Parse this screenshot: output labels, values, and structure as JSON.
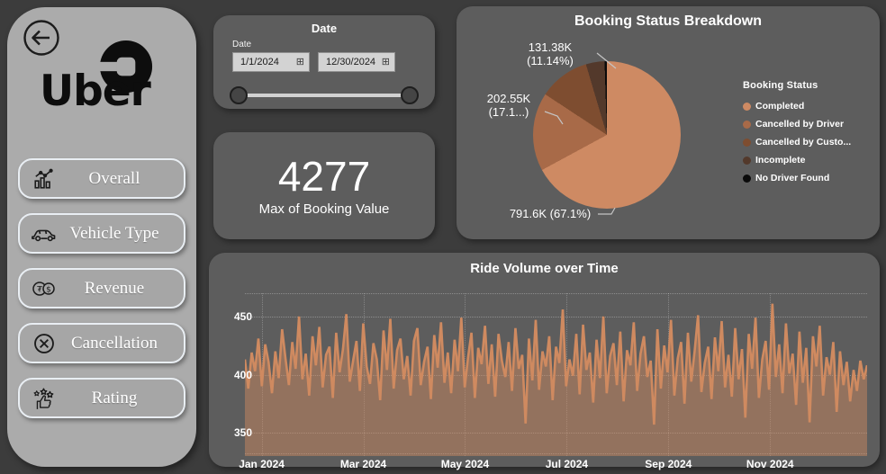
{
  "app": {
    "background_color": "#3c3c3c",
    "card_color": "#5d5d5d",
    "sidebar_color": "#ababab",
    "accent_color": "#CE8A63"
  },
  "sidebar": {
    "back_icon": "back-arrow-icon",
    "logo_text": "Uber",
    "logo_icon": "uber-badge-icon",
    "items": [
      {
        "label": "Overall",
        "icon": "bar-chart-icon"
      },
      {
        "label": "Vehicle Type",
        "icon": "car-icon"
      },
      {
        "label": "Revenue",
        "icon": "coins-icon"
      },
      {
        "label": "Cancellation",
        "icon": "cancel-circle-icon"
      },
      {
        "label": "Rating",
        "icon": "thumbs-up-stars-icon"
      }
    ]
  },
  "date_card": {
    "title": "Date",
    "field_label": "Date",
    "start_date": "1/1/2024",
    "end_date": "12/30/2024",
    "calendar_icon": "calendar-icon"
  },
  "kpi_card": {
    "value": "4277",
    "label": "Max of Booking Value"
  },
  "chart_data": [
    {
      "type": "pie",
      "title": "Booking Status Breakdown",
      "legend_title": "Booking Status",
      "legend_position": "right",
      "slices": [
        {
          "label": "Completed",
          "pct": 67.1,
          "value_label": "791.6K",
          "color": "#CE8A63",
          "callout_line1": "791.6K (67.1%)",
          "callout_line2": ""
        },
        {
          "label": "Cancelled by Driver",
          "pct": 17.17,
          "value_label": "202.55K",
          "color": "#A86A48",
          "callout_line1": "202.55K",
          "callout_line2": "(17.1...)"
        },
        {
          "label": "Cancelled by Custo...",
          "pct": 11.14,
          "value_label": "131.38K",
          "color": "#7E4D30",
          "callout_line1": "131.38K",
          "callout_line2": "(11.14%)"
        },
        {
          "label": "Incomplete",
          "pct": 4.09,
          "value_label": "",
          "color": "#53392B",
          "callout_line1": "",
          "callout_line2": ""
        },
        {
          "label": "No Driver Found",
          "pct": 0.5,
          "value_label": "",
          "color": "#0a0a0a",
          "callout_line1": "",
          "callout_line2": ""
        }
      ]
    },
    {
      "type": "area",
      "title": "Ride Volume over Time",
      "x_labels": [
        "Jan 2024",
        "Mar 2024",
        "May 2024",
        "Jul 2024",
        "Sep 2024",
        "Nov 2024"
      ],
      "y_ticks": [
        350,
        400,
        450
      ],
      "ylim": [
        330,
        470
      ],
      "grid": "dotted",
      "line_color": "#CF8A60",
      "fill_color": "rgba(207,138,96,0.48)",
      "values": [
        413,
        388,
        419,
        403,
        431,
        390,
        426,
        411,
        384,
        420,
        397,
        439,
        414,
        391,
        428,
        405,
        450,
        396,
        418,
        382,
        433,
        408,
        441,
        389,
        417,
        424,
        380,
        436,
        402,
        422,
        452,
        394,
        412,
        429,
        386,
        444,
        407,
        392,
        427,
        413,
        378,
        438,
        404,
        448,
        388,
        421,
        431,
        396,
        416,
        382,
        429,
        440,
        391,
        411,
        424,
        379,
        434,
        406,
        445,
        393,
        419,
        384,
        430,
        403,
        449,
        389,
        415,
        436,
        380,
        423,
        409,
        442,
        392,
        426,
        381,
        435,
        412,
        398,
        428,
        386,
        440,
        405,
        417,
        358,
        431,
        395,
        447,
        387,
        420,
        407,
        433,
        378,
        424,
        410,
        456,
        390,
        413,
        399,
        435,
        383,
        443,
        404,
        419,
        376,
        430,
        397,
        450,
        384,
        416,
        427,
        391,
        437,
        377,
        421,
        408,
        445,
        386,
        418,
        433,
        398,
        412,
        357,
        439,
        388,
        425,
        402,
        447,
        382,
        414,
        428,
        375,
        436,
        394,
        420,
        451,
        385,
        410,
        424,
        379,
        432,
        403,
        446,
        389,
        417,
        381,
        440,
        396,
        422,
        363,
        435,
        405,
        449,
        380,
        413,
        429,
        387,
        461,
        398,
        426,
        384,
        444,
        401,
        418,
        374,
        437,
        393,
        423,
        359,
        433,
        407,
        442,
        382,
        415,
        400,
        428,
        368,
        420,
        391,
        411,
        377,
        404,
        386,
        412,
        396,
        408
      ]
    }
  ]
}
